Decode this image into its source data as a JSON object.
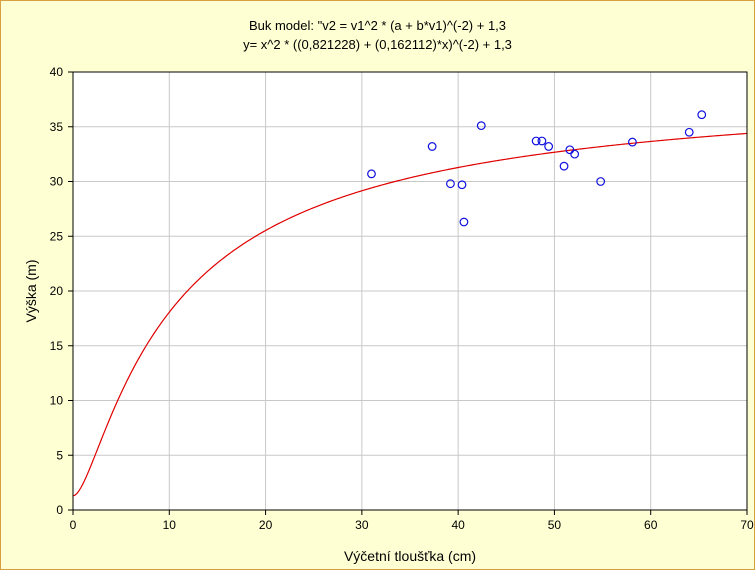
{
  "chart_data": {
    "type": "scatter",
    "title": "Buk model: \"v2 = v1^2 * (a + b*v1)^(-2) + 1,3",
    "subtitle": "y= x^2 * ((0,821228) + (0,162112)*x)^(-2) + 1,3",
    "xlabel": "Výčetní tloušťka (cm)",
    "ylabel": "Výška (m)",
    "xlim": [
      0,
      70
    ],
    "ylim": [
      0,
      40
    ],
    "xticks": [
      "0",
      "10",
      "20",
      "30",
      "40",
      "50",
      "60",
      "70"
    ],
    "yticks": [
      "0",
      "5",
      "10",
      "15",
      "20",
      "25",
      "30",
      "35",
      "40"
    ],
    "grid": true,
    "legend": "none",
    "model": {
      "a": 0.821228,
      "b": 0.162112,
      "c": 1.3
    },
    "points": [
      {
        "x": 31.0,
        "y": 30.7
      },
      {
        "x": 37.3,
        "y": 33.2
      },
      {
        "x": 39.2,
        "y": 29.8
      },
      {
        "x": 40.4,
        "y": 29.7
      },
      {
        "x": 40.6,
        "y": 26.3
      },
      {
        "x": 42.4,
        "y": 35.1
      },
      {
        "x": 48.1,
        "y": 33.7
      },
      {
        "x": 48.7,
        "y": 33.7
      },
      {
        "x": 49.4,
        "y": 33.2
      },
      {
        "x": 51.0,
        "y": 31.4
      },
      {
        "x": 51.6,
        "y": 32.9
      },
      {
        "x": 52.1,
        "y": 32.5
      },
      {
        "x": 54.8,
        "y": 30.0
      },
      {
        "x": 58.1,
        "y": 33.6
      },
      {
        "x": 64.0,
        "y": 34.5
      },
      {
        "x": 65.3,
        "y": 36.1
      }
    ],
    "colors": {
      "points": "#1010e0",
      "curve": "#e00000",
      "grid": "#c8c8c8",
      "plot_bg": "#ffffff",
      "frame_bg": "#ffffd4"
    }
  }
}
